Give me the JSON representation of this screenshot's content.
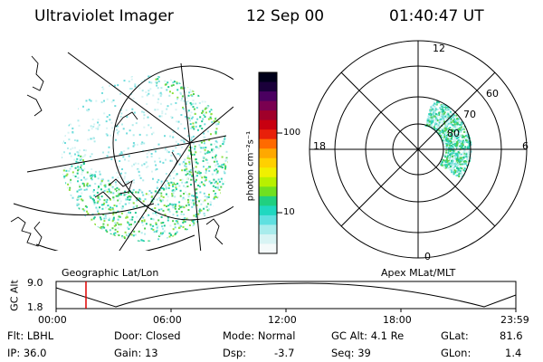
{
  "header": {
    "title": "Ultraviolet Imager",
    "date": "12 Sep 00",
    "time": "01:40:47 UT"
  },
  "colorbar": {
    "label": "photon cm⁻²s⁻¹",
    "ticks": [
      "100",
      "10"
    ],
    "colors": [
      "#00001a",
      "#1a003a",
      "#4a0060",
      "#7a0050",
      "#a0002a",
      "#c80010",
      "#e8200a",
      "#ff6a00",
      "#ffa800",
      "#ffd000",
      "#f0f000",
      "#b8f000",
      "#70e020",
      "#20d080",
      "#20d8c0",
      "#60e0e0",
      "#a8ecec",
      "#d8f4f4",
      "#f4fafa"
    ]
  },
  "left_panel": {
    "caption": "Geographic Lat/Lon"
  },
  "right_panel": {
    "caption": "Apex MLat/MLT",
    "mlt_labels": {
      "top": "12",
      "left": "18",
      "right": "6",
      "bottom": "0"
    },
    "lat_labels": [
      "60",
      "70",
      "80"
    ]
  },
  "altitude_plot": {
    "ylabel": "GC Alt",
    "y_ticks": [
      "9.0",
      "1.8"
    ],
    "x_ticks": [
      "00:00",
      "06:00",
      "12:00",
      "18:00",
      "23:59"
    ],
    "current_time_marker": "01:40:47"
  },
  "info": {
    "flt": "Flt: LBHL",
    "door": "Door: Closed",
    "mode": "Mode: Normal",
    "gc_alt": "GC Alt: 4.1 Re",
    "glat_label": "GLat:",
    "glat_value": "81.6",
    "ip": "IP: 36.0",
    "gain": "Gain: 13",
    "dsp_label": "Dsp:",
    "dsp_value": "-3.7",
    "seq": "Seq: 39",
    "glon_label": "GLon:",
    "glon_value": "1.4"
  }
}
